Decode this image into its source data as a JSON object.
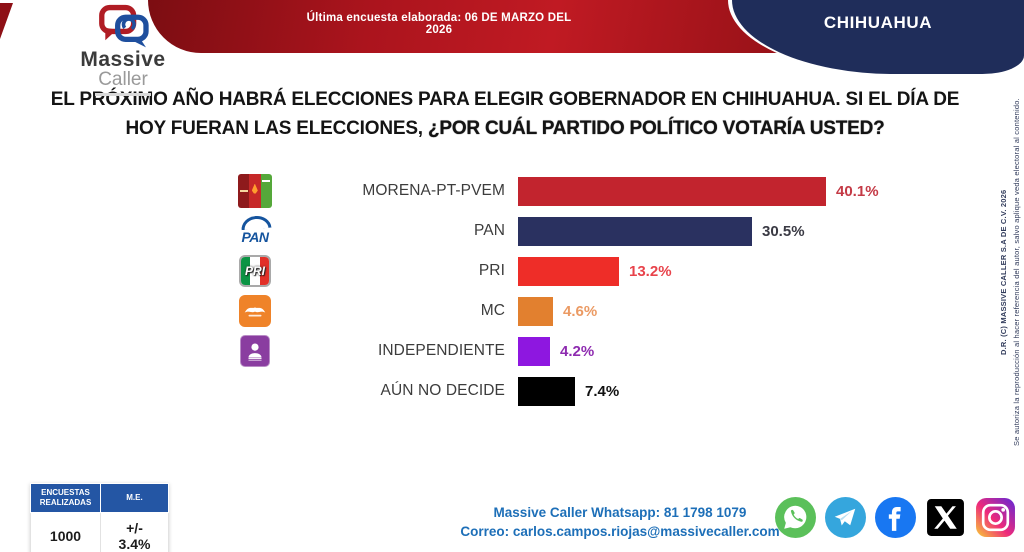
{
  "header": {
    "brand_name_top": "Massive",
    "brand_name_bottom": "Caller",
    "banner_text": "Última encuesta elaborada: 06 DE MARZO DEL 2026",
    "state_label": "CHIHUAHUA"
  },
  "question": {
    "regular": "EL PRÓXIMO AÑO HABRÁ ELECCIONES PARA ELEGIR GOBERNADOR EN CHIHUAHUA. SI EL DÍA DE HOY FUERAN LAS ELECCIONES, ",
    "bold": "¿POR CUÁL PARTIDO POLÍTICO VOTARÍA USTED?"
  },
  "chart_data": {
    "type": "bar",
    "orientation": "horizontal",
    "unit": "%",
    "title": "¿Por cuál partido político votaría usted? (Gobernador de Chihuahua)",
    "max_value": 40.1,
    "categories": [
      "MORENA-PT-PVEM",
      "PAN",
      "PRI",
      "MC",
      "INDEPENDIENTE",
      "AÚN NO DECIDE"
    ],
    "values": [
      40.1,
      30.5,
      13.2,
      4.6,
      4.2,
      7.4
    ],
    "parties": [
      {
        "label": "MORENA-PT-PVEM",
        "value": 40.1,
        "value_label": "40.1%",
        "bar_color": "#c2242e",
        "value_color": "#c43a46",
        "logo": "morena-pt-pvem-logo"
      },
      {
        "label": "PAN",
        "value": 30.5,
        "value_label": "30.5%",
        "bar_color": "#2a3160",
        "value_color": "#3a3a44",
        "logo": "pan-logo"
      },
      {
        "label": "PRI",
        "value": 13.2,
        "value_label": "13.2%",
        "bar_color": "#ee2d28",
        "value_color": "#e8434b",
        "logo": "pri-logo"
      },
      {
        "label": "MC",
        "value": 4.6,
        "value_label": "4.6%",
        "bar_color": "#e2802f",
        "value_color": "#eb9a63",
        "logo": "mc-logo"
      },
      {
        "label": "INDEPENDIENTE",
        "value": 4.2,
        "value_label": "4.2%",
        "bar_color": "#8e17e0",
        "value_color": "#8e2bb0",
        "logo": "independiente-logo"
      },
      {
        "label": "AÚN NO DECIDE",
        "value": 7.4,
        "value_label": "7.4%",
        "bar_color": "#000000",
        "value_color": "#111111",
        "logo": null
      }
    ]
  },
  "stats_table": {
    "header_1": "ENCUESTAS REALIZADAS",
    "header_2": "M.E.",
    "value_1": "1000",
    "value_2": "+/- 3.4%"
  },
  "contact": {
    "whatsapp": "Massive Caller Whatsapp: 81 1798 1079",
    "email": "Correo: carlos.campos.riojas@massivecaller.com"
  },
  "social_icons": [
    "whatsapp-icon",
    "telegram-icon",
    "facebook-icon",
    "x-icon",
    "instagram-icon"
  ],
  "copyright": {
    "line1": "D.R. (C) MASSIVE CALLER S.A DE C.V. 2026",
    "line2": "Se autoriza la reproducción al hacer referencia del autor, salvo aplique veda electoral al contenido."
  },
  "colors": {
    "banner_red": "#c01a23",
    "header_blue": "#1f2d5a",
    "table_header_blue": "#2456a4",
    "contact_blue": "#1d6fb8"
  }
}
